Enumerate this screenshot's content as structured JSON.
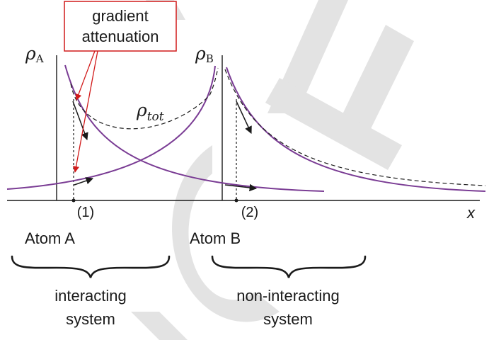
{
  "callout": {
    "line1": "gradient",
    "line2": "attenuation"
  },
  "density": {
    "symbol": "ρ",
    "a_subscript": "A",
    "b_subscript": "B",
    "tot_subscript": "tot"
  },
  "axis": {
    "x_label": "x"
  },
  "points": {
    "p1": "(1)",
    "p2": "(2)"
  },
  "atoms": {
    "a": "Atom A",
    "b": "Atom B"
  },
  "systems": {
    "interacting": {
      "line1": "interacting",
      "line2": "system"
    },
    "non_interacting": {
      "line1": "non-interacting",
      "line2": "system"
    }
  },
  "colors": {
    "curve": "#7a3c94",
    "callout": "#d11a1a",
    "watermark": "#e0e0e0",
    "ink": "#1a1a1a"
  }
}
